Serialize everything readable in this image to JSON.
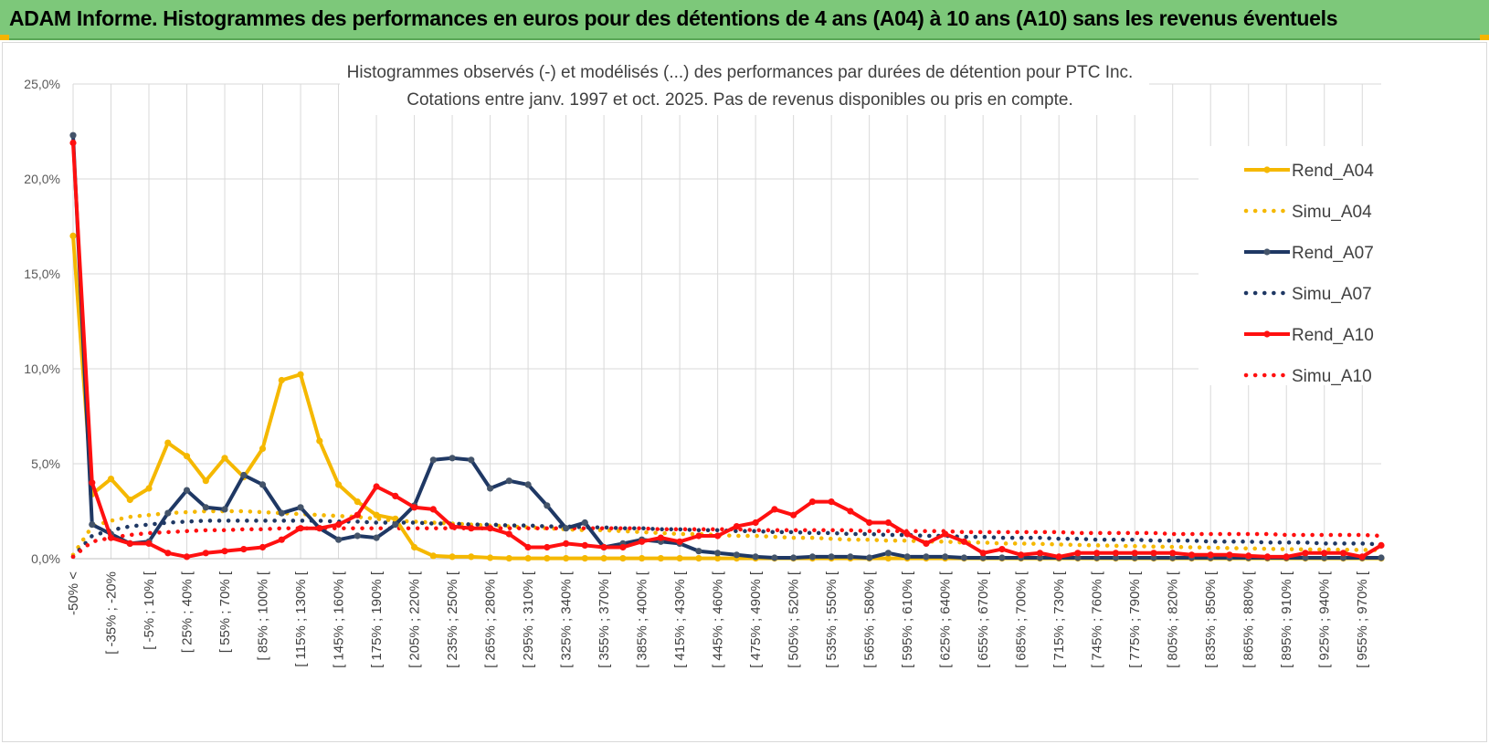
{
  "banner": {
    "title": "ADAM Informe. Histogrammes des performances en euros pour des détentions de 4 ans (A04) à 10 ans (A10) sans les revenus éventuels"
  },
  "colors": {
    "a04": "#f5b800",
    "a07": "#1f3864",
    "a10": "#ff1010",
    "grid": "#d9d9d9",
    "banner": "#7dc87a"
  },
  "chart_data": {
    "type": "line",
    "title": "Histogrammes observés (-) et modélisés (...) des performances par durées de détention pour PTC Inc.",
    "subtitle": "Cotations entre janv. 1997 et oct. 2025. Pas de revenus disponibles ou pris en compte.",
    "xlabel": "",
    "ylabel": "",
    "ylim": [
      0,
      25
    ],
    "y_ticks": [
      "0,0%",
      "5,0%",
      "10,0%",
      "15,0%",
      "20,0%",
      "25,0%"
    ],
    "x_tick_labels": [
      "-50% <",
      "[ -35% ; -20%",
      "[ -5% ; 10% [",
      "[ 25% ; 40% [",
      "[ 55% ; 70% [",
      "[ 85% ; 100% [",
      "[ 115% ; 130% [",
      "[ 145% ; 160% [",
      "[ 175% ; 190% [",
      "[ 205% ; 220% [",
      "[ 235% ; 250% [",
      "[ 265% ; 280% [",
      "[ 295% ; 310% [",
      "[ 325% ; 340% [",
      "[ 355% ; 370% [",
      "[ 385% ; 400% [",
      "[ 415% ; 430% [",
      "[ 445% ; 460% [",
      "[ 475% ; 490% [",
      "[ 505% ; 520% [",
      "[ 535% ; 550% [",
      "[ 565% ; 580% [",
      "[ 595% ; 610% [",
      "[ 625% ; 640% [",
      "[ 655% ; 670% [",
      "[ 685% ; 700% [",
      "[ 715% ; 730% [",
      "[ 745% ; 760% [",
      "[ 775% ; 790% [",
      "[ 805% ; 820% [",
      "[ 835% ; 850% [",
      "[ 865% ; 880% [",
      "[ 895% ; 910% [",
      "[ 925% ; 940% [",
      "[ 955% ; 970% ["
    ],
    "legend_position": "right",
    "series": [
      {
        "name": "Rend_A04",
        "style": "solid",
        "color": "#f5b800",
        "values": [
          17.0,
          3.4,
          4.2,
          3.1,
          3.7,
          6.1,
          5.4,
          4.1,
          5.3,
          4.3,
          5.8,
          9.4,
          9.7,
          6.2,
          3.9,
          3.0,
          2.3,
          2.1,
          0.6,
          0.15,
          0.1,
          0.1,
          0.05,
          0.02,
          0.02,
          0.02,
          0.02,
          0.02,
          0.02,
          0.02,
          0.02,
          0.02,
          0.02,
          0.02,
          0.02,
          0.02,
          0.02,
          0.02,
          0.02,
          0.02,
          0.02,
          0.02,
          0.02,
          0.02,
          0.02,
          0.02,
          0.02,
          0.02,
          0.02,
          0.02,
          0.02,
          0.02,
          0.02,
          0.02,
          0.02,
          0.02,
          0.02,
          0.02,
          0.02,
          0.02,
          0.02,
          0.02,
          0.02,
          0.02,
          0.02,
          0.02,
          0.02,
          0.02,
          0.02,
          0.02
        ]
      },
      {
        "name": "Simu_A04",
        "style": "dotted",
        "color": "#f5b800",
        "values": [
          0.2,
          1.7,
          2.0,
          2.2,
          2.3,
          2.4,
          2.45,
          2.5,
          2.5,
          2.5,
          2.45,
          2.4,
          2.35,
          2.3,
          2.25,
          2.2,
          2.1,
          2.0,
          1.95,
          1.9,
          1.85,
          1.8,
          1.75,
          1.7,
          1.65,
          1.6,
          1.55,
          1.5,
          1.5,
          1.45,
          1.4,
          1.35,
          1.3,
          1.3,
          1.25,
          1.2,
          1.2,
          1.15,
          1.1,
          1.1,
          1.05,
          1.0,
          1.0,
          0.95,
          0.95,
          0.9,
          0.9,
          0.85,
          0.85,
          0.8,
          0.8,
          0.78,
          0.75,
          0.72,
          0.7,
          0.68,
          0.66,
          0.64,
          0.62,
          0.6,
          0.58,
          0.56,
          0.54,
          0.52,
          0.5,
          0.49,
          0.48,
          0.47,
          0.46,
          0.45
        ]
      },
      {
        "name": "Rend_A07",
        "style": "solid",
        "color": "#1f3864",
        "values": [
          22.3,
          1.8,
          1.3,
          0.8,
          0.9,
          2.4,
          3.6,
          2.7,
          2.6,
          4.4,
          3.9,
          2.4,
          2.7,
          1.6,
          1.0,
          1.2,
          1.1,
          1.8,
          2.8,
          5.2,
          5.3,
          5.2,
          3.7,
          4.1,
          3.9,
          2.8,
          1.6,
          1.9,
          0.6,
          0.8,
          1.0,
          0.9,
          0.8,
          0.4,
          0.3,
          0.2,
          0.1,
          0.05,
          0.05,
          0.1,
          0.1,
          0.1,
          0.05,
          0.3,
          0.1,
          0.1,
          0.1,
          0.05,
          0.05,
          0.05,
          0.05,
          0.05,
          0.05,
          0.05,
          0.05,
          0.05,
          0.05,
          0.05,
          0.05,
          0.05,
          0.05,
          0.05,
          0.05,
          0.05,
          0.05,
          0.05,
          0.05,
          0.05,
          0.05,
          0.05
        ]
      },
      {
        "name": "Simu_A07",
        "style": "dotted",
        "color": "#1f3864",
        "values": [
          0.1,
          1.2,
          1.5,
          1.7,
          1.8,
          1.9,
          1.95,
          2.0,
          2.0,
          2.0,
          2.0,
          2.0,
          2.0,
          2.0,
          1.95,
          1.95,
          1.9,
          1.9,
          1.9,
          1.85,
          1.85,
          1.8,
          1.8,
          1.75,
          1.75,
          1.7,
          1.7,
          1.65,
          1.65,
          1.6,
          1.6,
          1.55,
          1.55,
          1.5,
          1.5,
          1.45,
          1.45,
          1.4,
          1.4,
          1.35,
          1.35,
          1.3,
          1.3,
          1.25,
          1.25,
          1.2,
          1.2,
          1.15,
          1.15,
          1.1,
          1.1,
          1.1,
          1.05,
          1.05,
          1.0,
          1.0,
          1.0,
          0.95,
          0.95,
          0.95,
          0.9,
          0.9,
          0.9,
          0.85,
          0.85,
          0.85,
          0.8,
          0.8,
          0.8,
          0.75
        ]
      },
      {
        "name": "Rend_A10",
        "style": "solid",
        "color": "#ff1010",
        "values": [
          21.9,
          4.0,
          1.1,
          0.8,
          0.8,
          0.3,
          0.1,
          0.3,
          0.4,
          0.5,
          0.6,
          1.0,
          1.6,
          1.6,
          1.8,
          2.3,
          3.8,
          3.3,
          2.7,
          2.6,
          1.7,
          1.6,
          1.6,
          1.3,
          0.6,
          0.6,
          0.8,
          0.7,
          0.6,
          0.6,
          0.9,
          1.1,
          0.9,
          1.2,
          1.2,
          1.7,
          1.9,
          2.6,
          2.3,
          3.0,
          3.0,
          2.5,
          1.9,
          1.9,
          1.3,
          0.8,
          1.3,
          0.9,
          0.3,
          0.5,
          0.2,
          0.3,
          0.1,
          0.3,
          0.3,
          0.3,
          0.3,
          0.3,
          0.3,
          0.2,
          0.2,
          0.2,
          0.15,
          0.1,
          0.1,
          0.3,
          0.3,
          0.3,
          0.1,
          0.7
        ]
      },
      {
        "name": "Simu_A10",
        "style": "dotted",
        "color": "#ff1010",
        "values": [
          0.1,
          0.9,
          1.1,
          1.25,
          1.35,
          1.4,
          1.45,
          1.5,
          1.5,
          1.55,
          1.55,
          1.6,
          1.6,
          1.6,
          1.6,
          1.6,
          1.6,
          1.6,
          1.6,
          1.6,
          1.6,
          1.6,
          1.6,
          1.6,
          1.6,
          1.6,
          1.6,
          1.6,
          1.6,
          1.6,
          1.6,
          1.55,
          1.55,
          1.55,
          1.55,
          1.55,
          1.5,
          1.5,
          1.5,
          1.5,
          1.5,
          1.5,
          1.45,
          1.45,
          1.45,
          1.45,
          1.45,
          1.4,
          1.4,
          1.4,
          1.4,
          1.4,
          1.4,
          1.35,
          1.35,
          1.35,
          1.35,
          1.35,
          1.3,
          1.3,
          1.3,
          1.3,
          1.3,
          1.3,
          1.25,
          1.25,
          1.25,
          1.25,
          1.25,
          1.2
        ]
      }
    ]
  }
}
